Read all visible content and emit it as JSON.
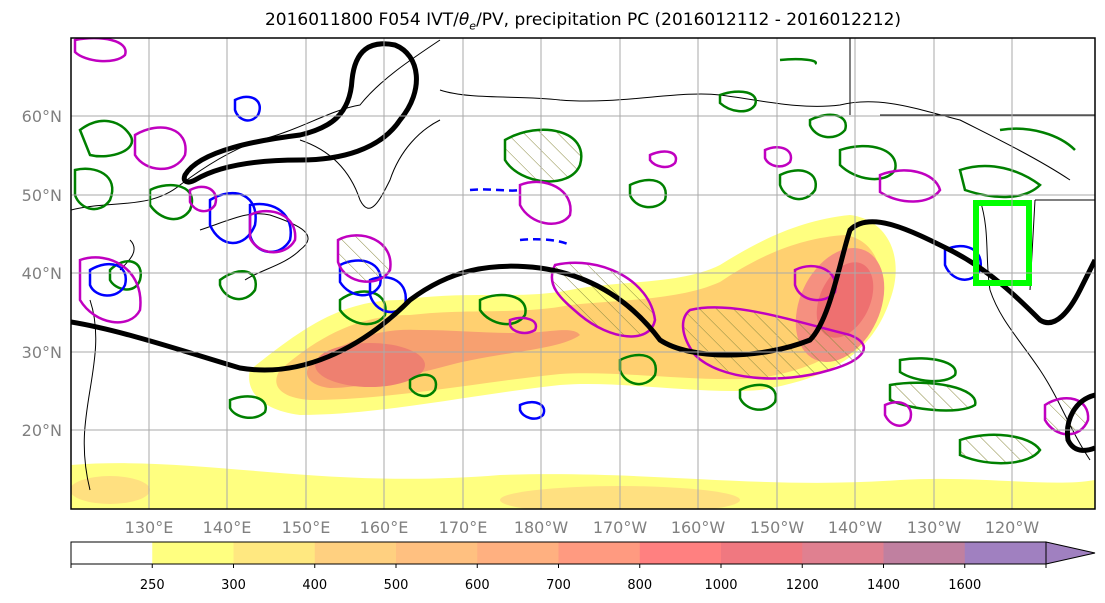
{
  "title": {
    "main": "2016011800 F054 IVT/",
    "theta": "θ",
    "sub": "e",
    "tail": "/PV, precipitation PC (2016012112 - 2016012212)"
  },
  "map": {
    "lat_labels": [
      "60°N",
      "50°N",
      "40°N",
      "30°N",
      "20°N"
    ],
    "lon_labels": [
      "130°E",
      "140°E",
      "150°E",
      "160°E",
      "170°E",
      "180°W",
      "170°W",
      "160°W",
      "150°W",
      "140°W",
      "130°W",
      "120°W"
    ],
    "contour_colors": {
      "ivt_fill_low": "#ffff66",
      "ivt_fill_high": "#f07070",
      "pv_line": "#000000",
      "green_contours": "#008000",
      "blue_contours": "#0000ff",
      "magenta_contours": "#c000c0",
      "target_box": "#00ff00"
    }
  },
  "colorbar": {
    "ticks": [
      "250",
      "300",
      "400",
      "500",
      "600",
      "700",
      "800",
      "1000",
      "1200",
      "1400",
      "1600"
    ],
    "colors": [
      "#ffffff",
      "#ffff80",
      "#ffe880",
      "#ffd080",
      "#ffc080",
      "#ffb080",
      "#ff9a80",
      "#ff8080",
      "#f07880",
      "#e08090",
      "#c080a0",
      "#a080c0"
    ]
  }
}
